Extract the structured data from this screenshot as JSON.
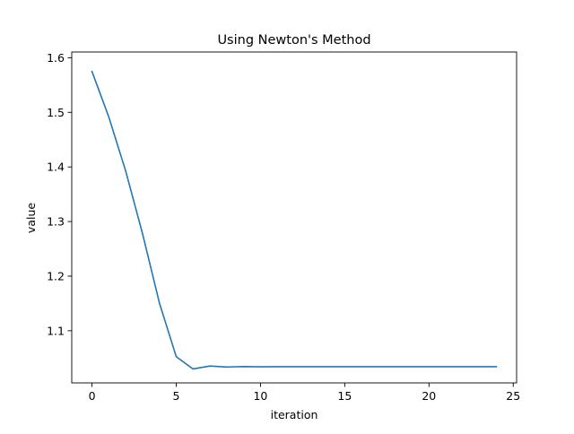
{
  "chart_data": {
    "type": "line",
    "title": "Using Newton's Method",
    "xlabel": "iteration",
    "ylabel": "value",
    "xlim": [
      -1.2,
      25.2
    ],
    "ylim": [
      1.0045,
      1.6105
    ],
    "xticks": [
      0,
      5,
      10,
      15,
      20,
      25
    ],
    "xtick_labels": [
      "0",
      "5",
      "10",
      "15",
      "20",
      "25"
    ],
    "yticks": [
      1.1,
      1.2,
      1.3,
      1.4,
      1.5,
      1.6
    ],
    "ytick_labels": [
      "1.1",
      "1.2",
      "1.3",
      "1.4",
      "1.5",
      "1.6"
    ],
    "grid": false,
    "series": [
      {
        "color": "#1f77b4",
        "x": [
          0,
          1,
          2,
          3,
          4,
          5,
          6,
          7,
          8,
          9,
          10,
          11,
          12,
          13,
          14,
          15,
          16,
          17,
          18,
          19,
          20,
          21,
          22,
          23,
          24
        ],
        "y": [
          1.5749,
          1.4914,
          1.3926,
          1.2779,
          1.1511,
          1.0526,
          1.03,
          1.0354,
          1.0336,
          1.0343,
          1.034,
          1.0341,
          1.0341,
          1.0341,
          1.0341,
          1.0341,
          1.0341,
          1.0341,
          1.0341,
          1.0341,
          1.0341,
          1.0341,
          1.0341,
          1.0341,
          1.0341
        ]
      }
    ]
  }
}
